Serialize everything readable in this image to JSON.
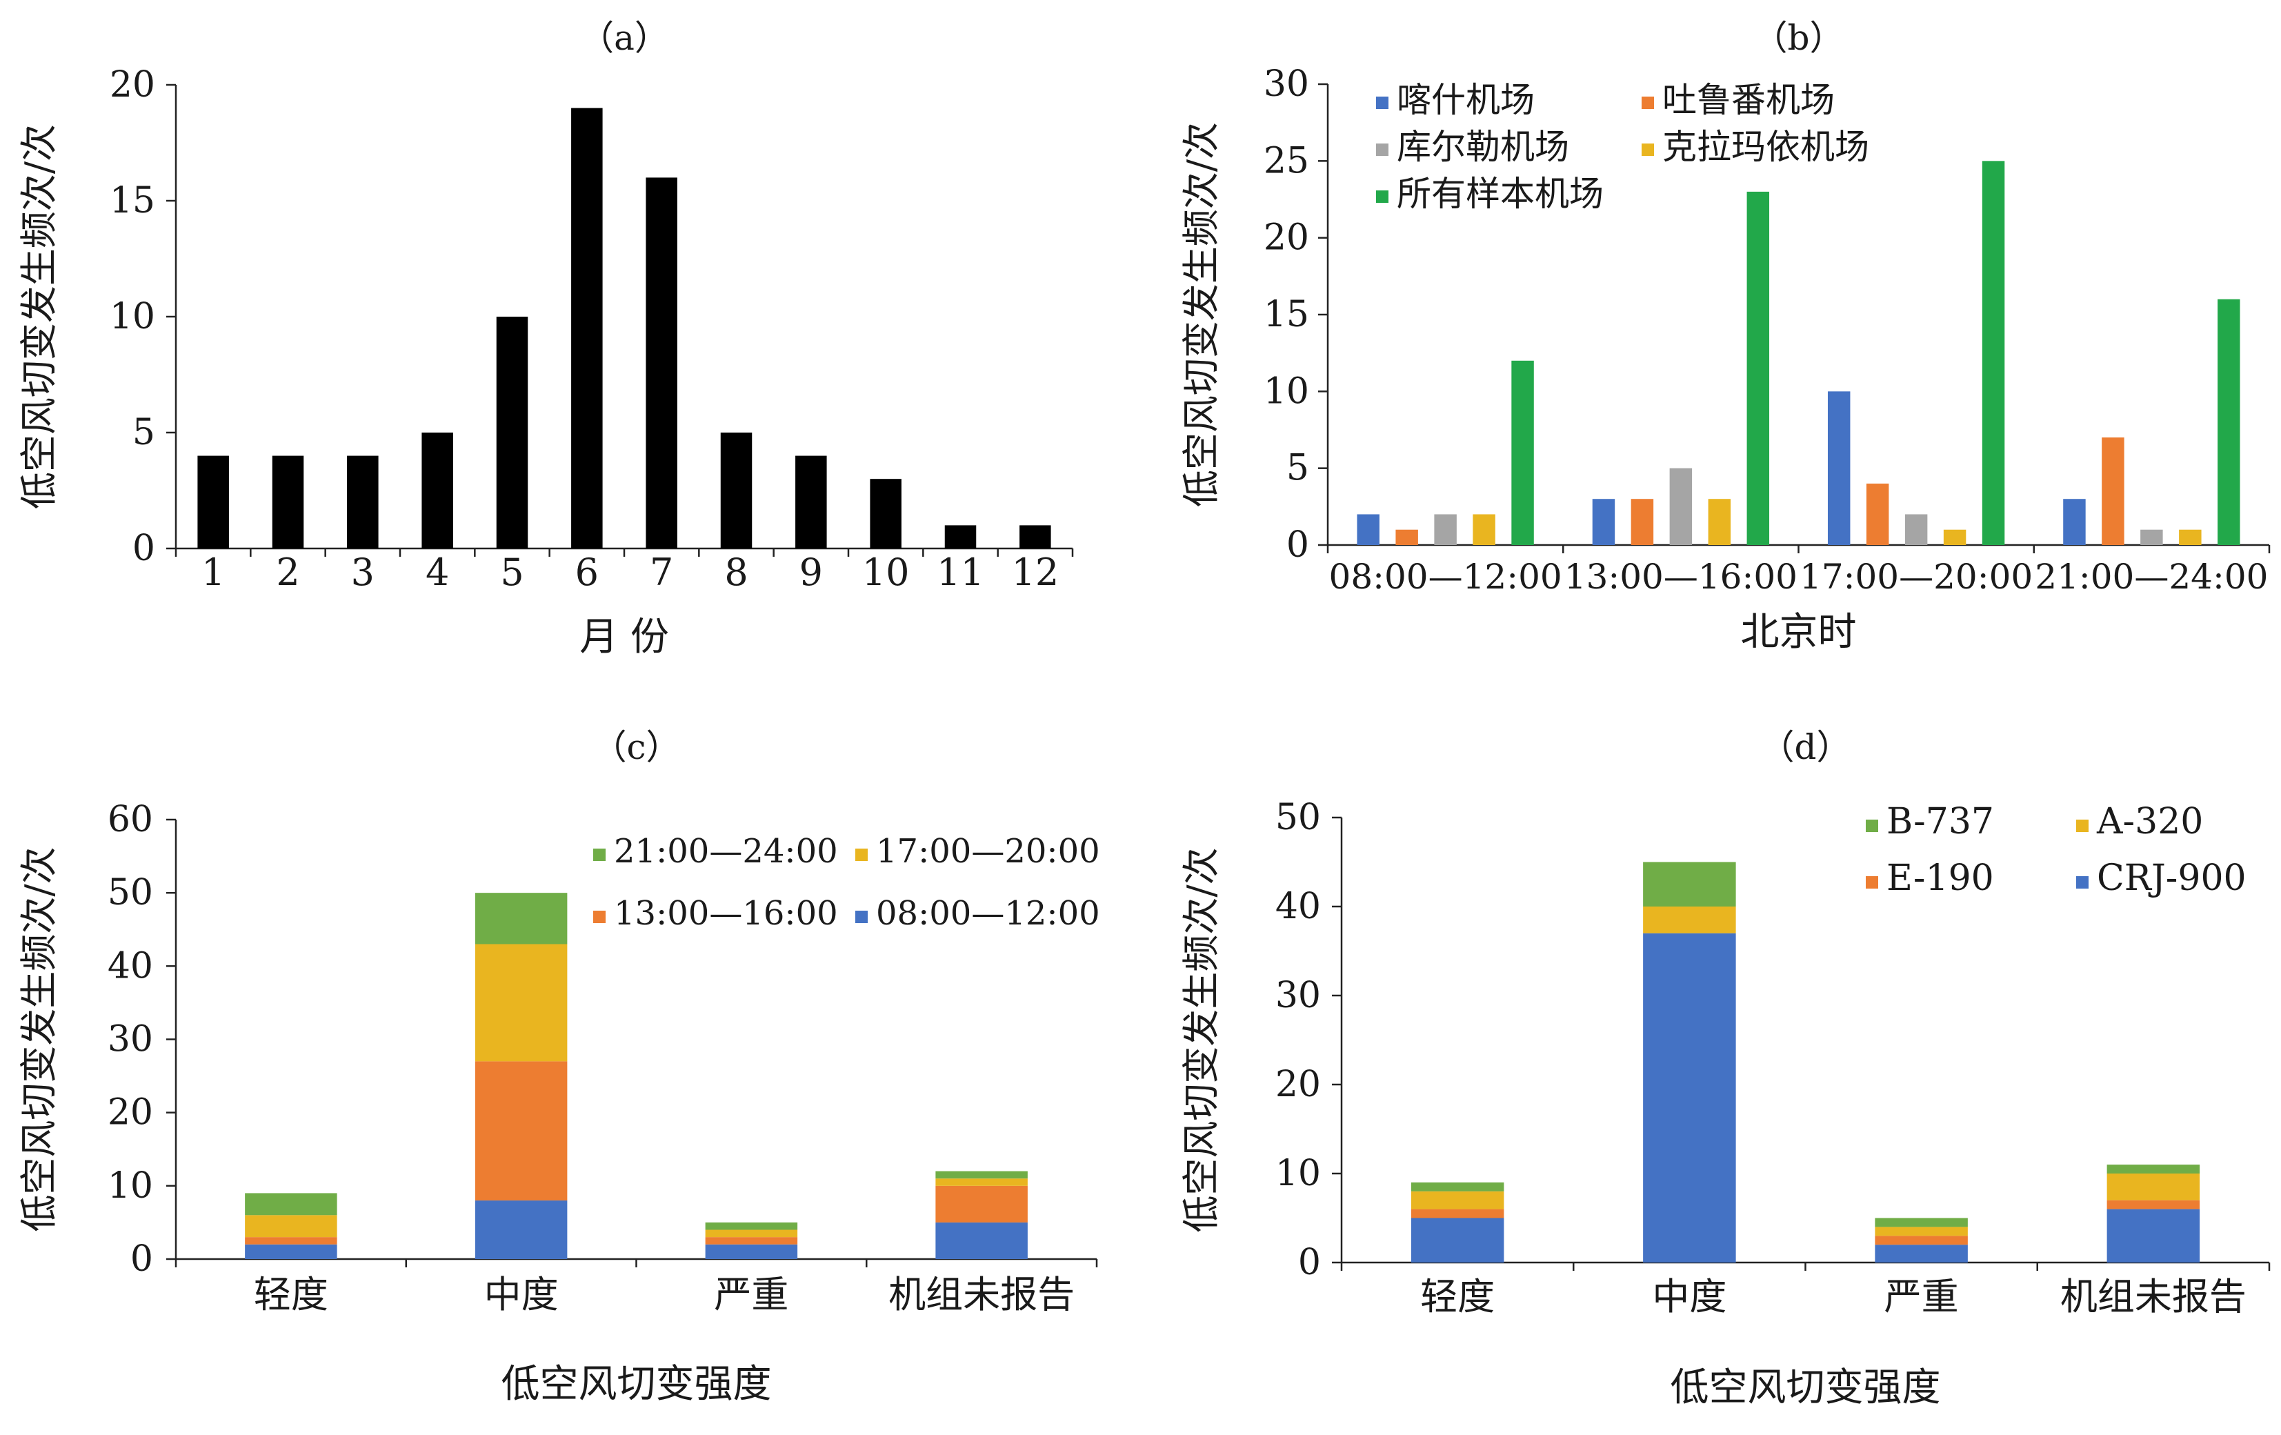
{
  "chart_data": [
    {
      "panel": "(a)",
      "type": "bar",
      "title": "（a）",
      "xlabel": "月  份",
      "ylabel": "低空风切变发生频次/次",
      "categories": [
        "1",
        "2",
        "3",
        "4",
        "5",
        "6",
        "7",
        "8",
        "9",
        "10",
        "11",
        "12"
      ],
      "values": [
        4,
        4,
        4,
        5,
        10,
        19,
        16,
        5,
        4,
        3,
        1,
        1
      ],
      "ylim": [
        0,
        20
      ],
      "yticks": [
        0,
        5,
        10,
        15,
        20
      ],
      "colors": {
        "bar": "#000000"
      }
    },
    {
      "panel": "(b)",
      "type": "bar",
      "title": "（b）",
      "xlabel": "北京时",
      "ylabel": "低空风切变发生频次/次",
      "categories": [
        "08:00—12:00",
        "13:00—16:00",
        "17:00—20:00",
        "21:00—24:00"
      ],
      "series": [
        {
          "name": "喀什机场",
          "values": [
            2,
            3,
            10,
            3
          ],
          "color": "#4472c4"
        },
        {
          "name": "吐鲁番机场",
          "values": [
            1,
            3,
            4,
            7
          ],
          "color": "#ed7d31"
        },
        {
          "name": "库尔勒机场",
          "values": [
            2,
            5,
            2,
            1
          ],
          "color": "#a5a5a5"
        },
        {
          "name": "克拉玛依机场",
          "values": [
            2,
            3,
            1,
            1
          ],
          "color": "#e9b520"
        },
        {
          "name": "所有样本机场",
          "values": [
            12,
            23,
            25,
            16
          ],
          "color": "#22a84a"
        }
      ],
      "ylim": [
        0,
        30
      ],
      "yticks": [
        0,
        5,
        10,
        15,
        20,
        25,
        30
      ],
      "legend": "top-left"
    },
    {
      "panel": "(c)",
      "type": "bar",
      "stacked": true,
      "title": "（c）",
      "xlabel": "低空风切变强度",
      "ylabel": "低空风切变发生频次/次",
      "categories": [
        "轻度",
        "中度",
        "严重",
        "机组未报告"
      ],
      "series": [
        {
          "name": "08:00—12:00",
          "values": [
            2,
            8,
            2,
            5
          ],
          "color": "#4472c4"
        },
        {
          "name": "13:00—16:00",
          "values": [
            1,
            19,
            1,
            5
          ],
          "color": "#ed7d31"
        },
        {
          "name": "17:00—20:00",
          "values": [
            3,
            16,
            1,
            1
          ],
          "color": "#e9b520"
        },
        {
          "name": "21:00—24:00",
          "values": [
            3,
            7,
            1,
            1
          ],
          "color": "#70ad47"
        }
      ],
      "ylim": [
        0,
        60
      ],
      "yticks": [
        0,
        10,
        20,
        30,
        40,
        50,
        60
      ],
      "legend": "top-right"
    },
    {
      "panel": "(d)",
      "type": "bar",
      "stacked": true,
      "title": "（d）",
      "xlabel": "低空风切变强度",
      "ylabel": "低空风切变发生频次/次",
      "categories": [
        "轻度",
        "中度",
        "严重",
        "机组未报告"
      ],
      "series": [
        {
          "name": "CRJ-900",
          "values": [
            5,
            37,
            2,
            6
          ],
          "color": "#4472c4"
        },
        {
          "name": "E-190",
          "values": [
            1,
            0,
            1,
            1
          ],
          "color": "#ed7d31"
        },
        {
          "name": "A-320",
          "values": [
            2,
            3,
            1,
            3
          ],
          "color": "#e9b520"
        },
        {
          "name": "B-737",
          "values": [
            1,
            5,
            1,
            1
          ],
          "color": "#70ad47"
        }
      ],
      "ylim": [
        0,
        50
      ],
      "yticks": [
        0,
        10,
        20,
        30,
        40,
        50
      ],
      "legend": "top-right"
    }
  ]
}
